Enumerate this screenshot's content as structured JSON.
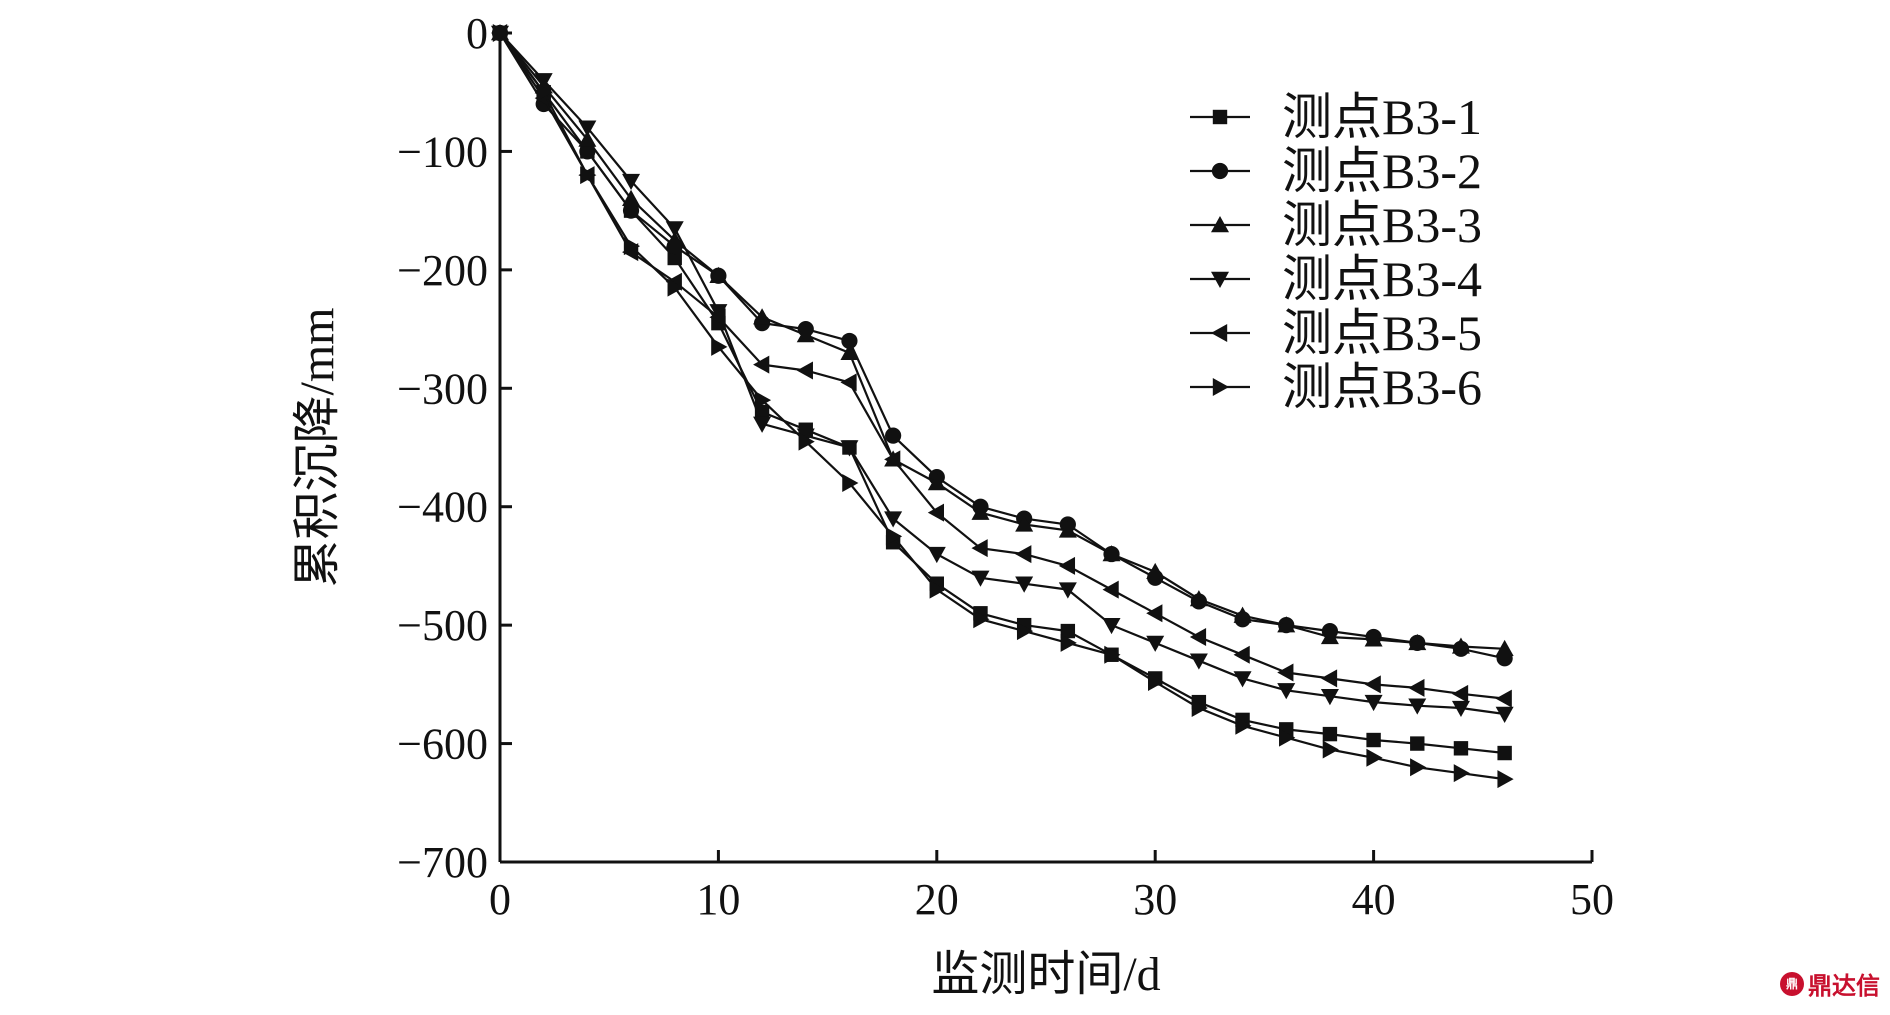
{
  "chart_data": {
    "type": "line",
    "title": "",
    "xlabel": "监测时间/d",
    "ylabel": "累积沉降/mm",
    "xlim": [
      0,
      50
    ],
    "ylim": [
      -700,
      0
    ],
    "x_ticks": [
      0,
      10,
      20,
      30,
      40,
      50
    ],
    "x_tick_labels": [
      "0",
      "10",
      "20",
      "30",
      "40",
      "50"
    ],
    "y_ticks": [
      0,
      -100,
      -200,
      -300,
      -400,
      -500,
      -600,
      -700
    ],
    "y_tick_labels": [
      "0",
      "−100",
      "−200",
      "−300",
      "−400",
      "−500",
      "−600",
      "−700"
    ],
    "grid": false,
    "legend_position": "top-right",
    "x": [
      0,
      2,
      4,
      6,
      8,
      10,
      12,
      14,
      16,
      18,
      20,
      22,
      24,
      26,
      28,
      30,
      32,
      34,
      36,
      38,
      40,
      42,
      44,
      46
    ],
    "series": [
      {
        "name": "测点B3-1",
        "marker": "square",
        "values": [
          0,
          -50,
          -100,
          -150,
          -190,
          -245,
          -320,
          -335,
          -350,
          -430,
          -465,
          -490,
          -500,
          -505,
          -525,
          -545,
          -565,
          -580,
          -588,
          -592,
          -597,
          -600,
          -604,
          -608
        ]
      },
      {
        "name": "测点B3-2",
        "marker": "circle",
        "values": [
          0,
          -60,
          -100,
          -150,
          -180,
          -205,
          -245,
          -250,
          -260,
          -340,
          -375,
          -400,
          -410,
          -415,
          -440,
          -460,
          -480,
          -495,
          -500,
          -505,
          -510,
          -515,
          -520,
          -528
        ]
      },
      {
        "name": "测点B3-3",
        "marker": "triangle-up",
        "values": [
          0,
          -45,
          -90,
          -140,
          -175,
          -205,
          -240,
          -255,
          -270,
          -360,
          -380,
          -405,
          -415,
          -420,
          -440,
          -455,
          -478,
          -492,
          -500,
          -510,
          -512,
          -515,
          -518,
          -520
        ]
      },
      {
        "name": "测点B3-4",
        "marker": "triangle-down",
        "values": [
          0,
          -40,
          -80,
          -125,
          -165,
          -235,
          -330,
          -340,
          -350,
          -410,
          -440,
          -460,
          -465,
          -470,
          -500,
          -515,
          -530,
          -545,
          -555,
          -560,
          -565,
          -568,
          -570,
          -575
        ]
      },
      {
        "name": "测点B3-5",
        "marker": "triangle-left",
        "values": [
          0,
          -55,
          -120,
          -185,
          -210,
          -240,
          -280,
          -285,
          -295,
          -360,
          -405,
          -435,
          -440,
          -450,
          -470,
          -490,
          -510,
          -525,
          -540,
          -545,
          -550,
          -553,
          -558,
          -562
        ]
      },
      {
        "name": "测点B3-6",
        "marker": "triangle-right",
        "values": [
          0,
          -50,
          -120,
          -180,
          -215,
          -265,
          -310,
          -345,
          -380,
          -425,
          -470,
          -495,
          -505,
          -515,
          -525,
          -548,
          -570,
          -585,
          -595,
          -605,
          -612,
          -620,
          -625,
          -630
        ]
      }
    ]
  },
  "watermark": {
    "logo_text": "鼎",
    "text": "鼎达信"
  }
}
